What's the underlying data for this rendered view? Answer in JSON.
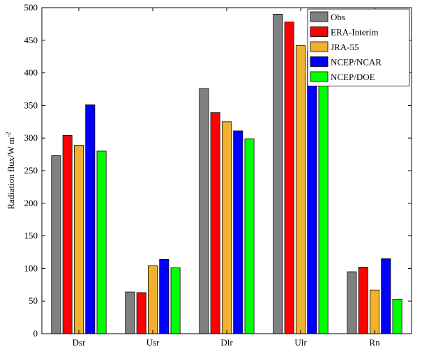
{
  "chart_data": {
    "type": "bar",
    "categories": [
      "Dsr",
      "Usr",
      "Dlr",
      "Ulr",
      "Rn"
    ],
    "ylabel": "Radiation flux/W m",
    "ylabel_superscript": "-2",
    "ylim": [
      0,
      500
    ],
    "yticks": [
      0,
      50,
      100,
      150,
      200,
      250,
      300,
      350,
      400,
      450,
      500
    ],
    "legend_position": "top-right",
    "grid": false,
    "series": [
      {
        "name": "Obs",
        "color": "#808080",
        "values": [
          273,
          64,
          376,
          490,
          95
        ]
      },
      {
        "name": "ERA-Interim",
        "color": "#ff0000",
        "values": [
          304,
          63,
          339,
          478,
          102
        ]
      },
      {
        "name": "JRA-55",
        "color": "#f0b030",
        "values": [
          289,
          104,
          325,
          442,
          67
        ]
      },
      {
        "name": "NCEP/NCAR",
        "color": "#0000ff",
        "values": [
          351,
          114,
          311,
          434,
          115
        ]
      },
      {
        "name": "NCEP/DOE",
        "color": "#00ff00",
        "values": [
          280,
          101,
          299,
          424,
          53
        ]
      }
    ]
  }
}
